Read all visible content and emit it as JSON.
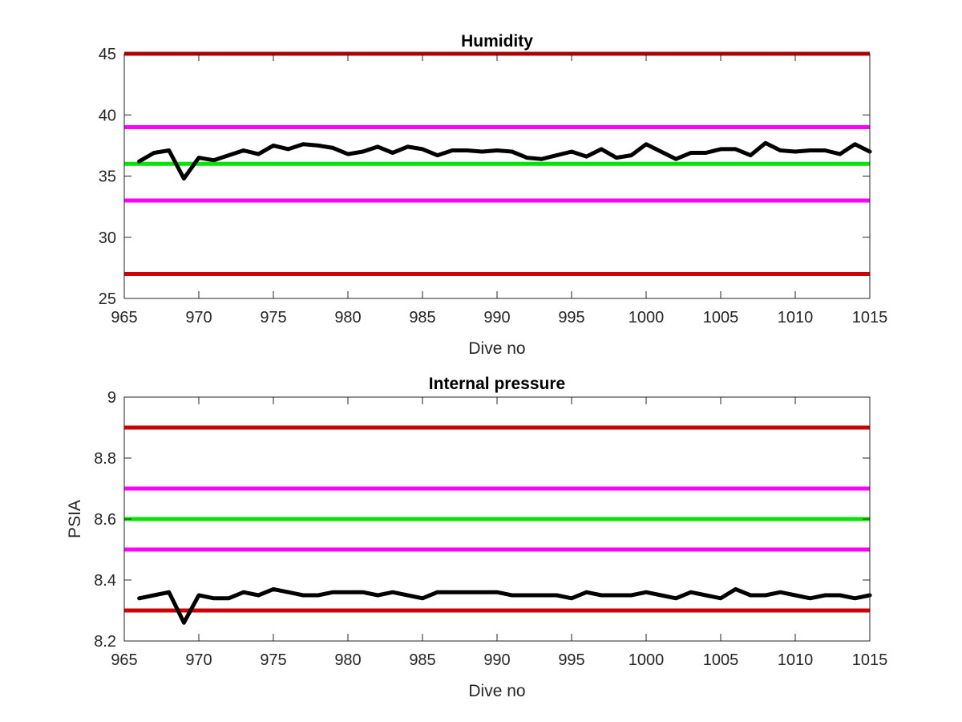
{
  "chart_data": [
    {
      "type": "line",
      "title": "Humidity",
      "xlabel": "Dive no",
      "ylabel": "",
      "xlim": [
        965,
        1015
      ],
      "ylim": [
        25,
        45
      ],
      "xticks": [
        965,
        970,
        975,
        980,
        985,
        990,
        995,
        1000,
        1005,
        1010,
        1015
      ],
      "yticks": [
        25,
        30,
        35,
        40,
        45
      ],
      "grid": false,
      "reference_lines": [
        {
          "value": 45,
          "color": "#cc0000"
        },
        {
          "value": 39,
          "color": "#ff00ff"
        },
        {
          "value": 36,
          "color": "#00e600"
        },
        {
          "value": 33,
          "color": "#ff00ff"
        },
        {
          "value": 27,
          "color": "#cc0000"
        }
      ],
      "series": [
        {
          "color": "#000000",
          "x": [
            966,
            967,
            968,
            969,
            970,
            971,
            972,
            973,
            974,
            975,
            976,
            977,
            978,
            979,
            980,
            981,
            982,
            983,
            984,
            985,
            986,
            987,
            988,
            989,
            990,
            991,
            992,
            993,
            994,
            995,
            996,
            997,
            998,
            999,
            1000,
            1001,
            1002,
            1003,
            1004,
            1005,
            1006,
            1007,
            1008,
            1009,
            1010,
            1011,
            1012,
            1013,
            1014,
            1015
          ],
          "y": [
            36.2,
            36.9,
            37.1,
            34.8,
            36.5,
            36.3,
            36.7,
            37.1,
            36.8,
            37.5,
            37.2,
            37.6,
            37.5,
            37.3,
            36.8,
            37.0,
            37.4,
            36.9,
            37.4,
            37.2,
            36.7,
            37.1,
            37.1,
            37.0,
            37.1,
            37.0,
            36.5,
            36.4,
            36.7,
            37.0,
            36.6,
            37.2,
            36.5,
            36.7,
            37.6,
            37.0,
            36.4,
            36.9,
            36.9,
            37.2,
            37.2,
            36.7,
            37.7,
            37.1,
            37.0,
            37.1,
            37.1,
            36.8,
            37.6,
            37.0
          ]
        }
      ]
    },
    {
      "type": "line",
      "title": "Internal pressure",
      "xlabel": "Dive no",
      "ylabel": "PSIA",
      "xlim": [
        965,
        1015
      ],
      "ylim": [
        8.2,
        9
      ],
      "xticks": [
        965,
        970,
        975,
        980,
        985,
        990,
        995,
        1000,
        1005,
        1010,
        1015
      ],
      "yticks": [
        8.2,
        8.4,
        8.6,
        8.8,
        9
      ],
      "ytick_labels": [
        "8.2",
        "8.4",
        "8.6",
        "8.8",
        "9"
      ],
      "grid": false,
      "reference_lines": [
        {
          "value": 8.9,
          "color": "#cc0000"
        },
        {
          "value": 8.7,
          "color": "#ff00ff"
        },
        {
          "value": 8.6,
          "color": "#00e600"
        },
        {
          "value": 8.5,
          "color": "#ff00ff"
        },
        {
          "value": 8.3,
          "color": "#cc0000"
        }
      ],
      "series": [
        {
          "color": "#000000",
          "x": [
            966,
            967,
            968,
            969,
            970,
            971,
            972,
            973,
            974,
            975,
            976,
            977,
            978,
            979,
            980,
            981,
            982,
            983,
            984,
            985,
            986,
            987,
            988,
            989,
            990,
            991,
            992,
            993,
            994,
            995,
            996,
            997,
            998,
            999,
            1000,
            1001,
            1002,
            1003,
            1004,
            1005,
            1006,
            1007,
            1008,
            1009,
            1010,
            1011,
            1012,
            1013,
            1014,
            1015
          ],
          "y": [
            8.34,
            8.35,
            8.36,
            8.26,
            8.35,
            8.34,
            8.34,
            8.36,
            8.35,
            8.37,
            8.36,
            8.35,
            8.35,
            8.36,
            8.36,
            8.36,
            8.35,
            8.36,
            8.35,
            8.34,
            8.36,
            8.36,
            8.36,
            8.36,
            8.36,
            8.35,
            8.35,
            8.35,
            8.35,
            8.34,
            8.36,
            8.35,
            8.35,
            8.35,
            8.36,
            8.35,
            8.34,
            8.36,
            8.35,
            8.34,
            8.37,
            8.35,
            8.35,
            8.36,
            8.35,
            8.34,
            8.35,
            8.35,
            8.34,
            8.35
          ]
        }
      ]
    }
  ]
}
